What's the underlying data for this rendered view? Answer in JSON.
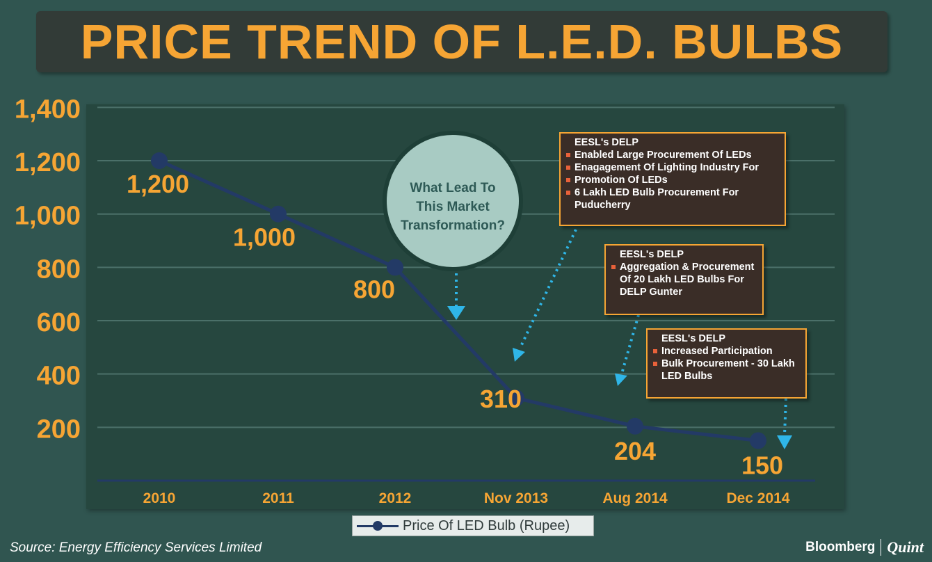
{
  "title": "PRICE TREND OF L.E.D. BULBS",
  "chart_data": {
    "type": "line",
    "title": "PRICE TREND OF L.E.D. BULBS",
    "categories": [
      "2010",
      "2011",
      "2012",
      "Nov 2013",
      "Aug 2014",
      "Dec 2014"
    ],
    "series": [
      {
        "name": "Price Of LED Bulb (Rupee)",
        "values": [
          1200,
          1000,
          800,
          310,
          204,
          150
        ]
      }
    ],
    "data_labels": [
      "1,200",
      "1,000",
      "800",
      "310",
      "204",
      "150"
    ],
    "y_ticks": [
      200,
      400,
      600,
      800,
      1000,
      1200,
      1400
    ],
    "y_tick_labels": [
      "200",
      "400",
      "600",
      "800",
      "1,000",
      "1,200",
      "1,400"
    ],
    "ylim": [
      0,
      1400
    ],
    "grid": true,
    "xlabel": "",
    "ylabel": "",
    "legend": "bottom-center"
  },
  "annotations": {
    "question_bubble": "What Lead To This Market Transformation?",
    "callouts": [
      {
        "title": "EESL's DELP",
        "bullets": [
          "Enabled Large Procurement Of LEDs",
          "Enagagement Of Lighting Industry For",
          "Promotion Of LEDs",
          "6 Lakh LED Bulb Procurement For Puducherry"
        ]
      },
      {
        "title": "EESL's DELP",
        "bullets": [
          "Aggregation & Procurement Of 20 Lakh LED Bulbs For DELP Gunter"
        ]
      },
      {
        "title": "EESL's DELP",
        "bullets": [
          "Increased Participation",
          "Bulk Procurement - 30 Lakh LED Bulbs"
        ]
      }
    ]
  },
  "legend": {
    "label": "Price Of LED Bulb (Rupee)"
  },
  "source": "Source: Energy Efficiency Services Limited",
  "brand": {
    "left": "Bloomberg",
    "right": "Quint"
  },
  "colors": {
    "background": "#305550",
    "plot_panel": "#26473f",
    "accent_orange": "#f6a534",
    "line_navy": "#233a66",
    "arrow_blue": "#2fb6e8",
    "bubble_fill": "#a8cbc3",
    "callout_fill": "#3a2d27",
    "bullet_red": "#e8613a"
  }
}
